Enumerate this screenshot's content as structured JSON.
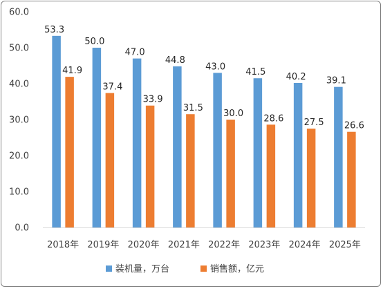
{
  "chart_data": {
    "type": "bar",
    "categories": [
      "2018年",
      "2019年",
      "2020年",
      "2021年",
      "2022年",
      "2023年",
      "2024年",
      "2025年"
    ],
    "series": [
      {
        "name": "装机量，万台",
        "color": "#5b9bd5",
        "values": [
          53.3,
          50.0,
          47.0,
          44.8,
          43.0,
          41.5,
          40.2,
          39.1
        ]
      },
      {
        "name": "销售额，亿元",
        "color": "#ed7d31",
        "values": [
          41.9,
          37.4,
          33.9,
          31.5,
          30.0,
          28.6,
          27.5,
          26.6
        ]
      }
    ],
    "yticks": [
      "0.0",
      "10.0",
      "20.0",
      "30.0",
      "40.0",
      "50.0",
      "60.0"
    ],
    "ylim": [
      0,
      60
    ],
    "grid": false,
    "legend": "bottom",
    "title": "",
    "xlabel": "",
    "ylabel": ""
  }
}
